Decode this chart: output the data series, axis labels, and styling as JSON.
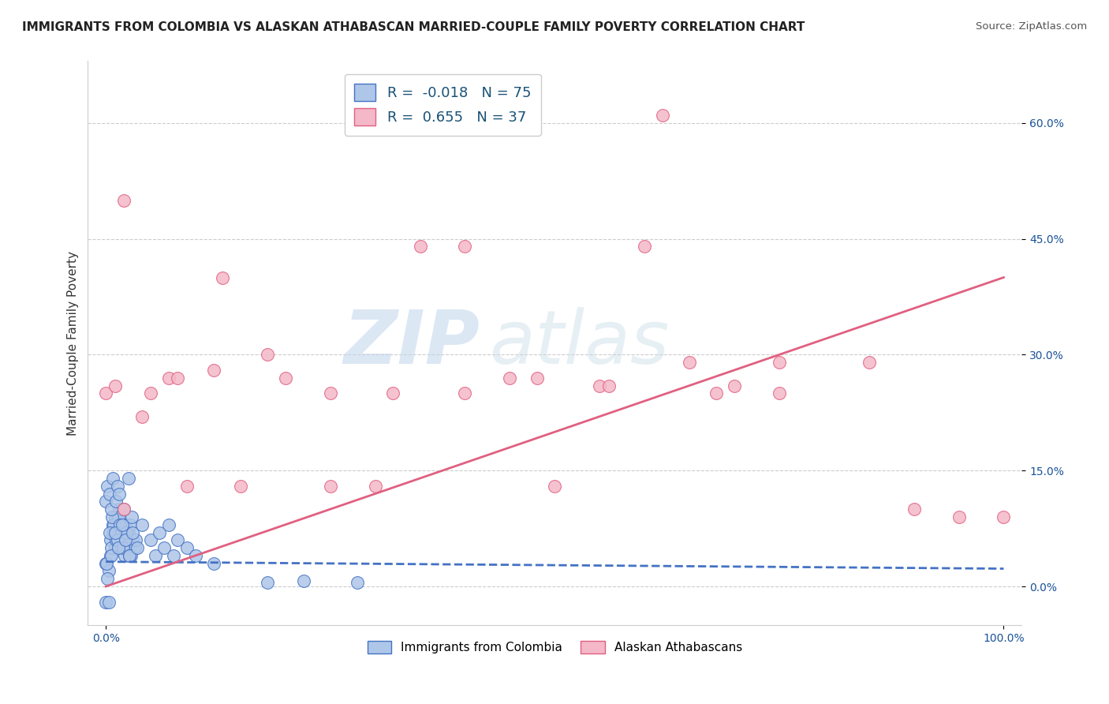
{
  "title": "IMMIGRANTS FROM COLOMBIA VS ALASKAN ATHABASCAN MARRIED-COUPLE FAMILY POVERTY CORRELATION CHART",
  "source": "Source: ZipAtlas.com",
  "ylabel": "Married-Couple Family Poverty",
  "xlim": [
    -0.02,
    1.02
  ],
  "ylim": [
    -0.05,
    0.68
  ],
  "x_ticks": [
    0.0,
    1.0
  ],
  "x_tick_labels": [
    "0.0%",
    "100.0%"
  ],
  "y_ticks": [
    0.0,
    0.15,
    0.3,
    0.45,
    0.6
  ],
  "y_tick_labels": [
    "0.0%",
    "15.0%",
    "30.0%",
    "45.0%",
    "60.0%"
  ],
  "watermark_zip": "ZIP",
  "watermark_atlas": "atlas",
  "legend_labels": [
    "Immigrants from Colombia",
    "Alaskan Athabascans"
  ],
  "series": [
    {
      "name": "Immigrants from Colombia",
      "R": -0.018,
      "N": 75,
      "color": "#aec6e8",
      "edge_color": "#4472c4",
      "line_color": "#4472c4",
      "line_style": "--",
      "trend_x0": 0.0,
      "trend_x1": 1.0,
      "trend_y0": 0.032,
      "trend_y1": 0.023,
      "x": [
        0.0,
        0.005,
        0.008,
        0.01,
        0.012,
        0.015,
        0.018,
        0.02,
        0.022,
        0.025,
        0.005,
        0.008,
        0.01,
        0.012,
        0.015,
        0.018,
        0.02,
        0.025,
        0.028,
        0.03,
        0.003,
        0.006,
        0.009,
        0.011,
        0.014,
        0.017,
        0.021,
        0.024,
        0.027,
        0.032,
        0.001,
        0.004,
        0.007,
        0.013,
        0.016,
        0.019,
        0.023,
        0.026,
        0.029,
        0.033,
        0.002,
        0.006,
        0.01,
        0.014,
        0.018,
        0.022,
        0.026,
        0.03,
        0.035,
        0.04,
        0.05,
        0.055,
        0.06,
        0.065,
        0.07,
        0.075,
        0.08,
        0.09,
        0.1,
        0.12,
        0.0,
        0.002,
        0.004,
        0.006,
        0.008,
        0.011,
        0.013,
        0.015,
        0.02,
        0.025,
        0.18,
        0.22,
        0.28,
        0.0,
        0.003
      ],
      "y": [
        0.03,
        0.06,
        0.08,
        0.05,
        0.09,
        0.07,
        0.1,
        0.06,
        0.08,
        0.05,
        0.04,
        0.07,
        0.09,
        0.06,
        0.1,
        0.08,
        0.05,
        0.07,
        0.04,
        0.06,
        0.02,
        0.05,
        0.08,
        0.06,
        0.09,
        0.07,
        0.04,
        0.06,
        0.08,
        0.05,
        0.03,
        0.07,
        0.09,
        0.06,
        0.08,
        0.05,
        0.07,
        0.04,
        0.09,
        0.06,
        0.01,
        0.04,
        0.07,
        0.05,
        0.08,
        0.06,
        0.04,
        0.07,
        0.05,
        0.08,
        0.06,
        0.04,
        0.07,
        0.05,
        0.08,
        0.04,
        0.06,
        0.05,
        0.04,
        0.03,
        0.11,
        0.13,
        0.12,
        0.1,
        0.14,
        0.11,
        0.13,
        0.12,
        0.1,
        0.14,
        0.005,
        0.007,
        0.005,
        -0.02,
        -0.02
      ]
    },
    {
      "name": "Alaskan Athabascans",
      "R": 0.655,
      "N": 37,
      "color": "#f4b8c8",
      "edge_color": "#e06080",
      "line_color": "#e06080",
      "line_style": "-",
      "trend_x0": 0.0,
      "trend_x1": 1.0,
      "trend_y0": 0.0,
      "trend_y1": 0.4,
      "x": [
        0.0,
        0.01,
        0.02,
        0.04,
        0.07,
        0.09,
        0.12,
        0.15,
        0.2,
        0.25,
        0.3,
        0.35,
        0.4,
        0.45,
        0.5,
        0.55,
        0.6,
        0.65,
        0.7,
        0.75,
        0.02,
        0.05,
        0.08,
        0.13,
        0.18,
        0.25,
        0.32,
        0.4,
        0.48,
        0.56,
        0.62,
        0.68,
        0.75,
        0.85,
        0.9,
        0.95,
        1.0
      ],
      "y": [
        0.25,
        0.26,
        0.1,
        0.22,
        0.27,
        0.13,
        0.28,
        0.13,
        0.27,
        0.25,
        0.13,
        0.44,
        0.25,
        0.27,
        0.13,
        0.26,
        0.44,
        0.29,
        0.26,
        0.25,
        0.5,
        0.25,
        0.27,
        0.4,
        0.3,
        0.13,
        0.25,
        0.44,
        0.27,
        0.26,
        0.61,
        0.25,
        0.29,
        0.29,
        0.1,
        0.09,
        0.09
      ]
    }
  ]
}
